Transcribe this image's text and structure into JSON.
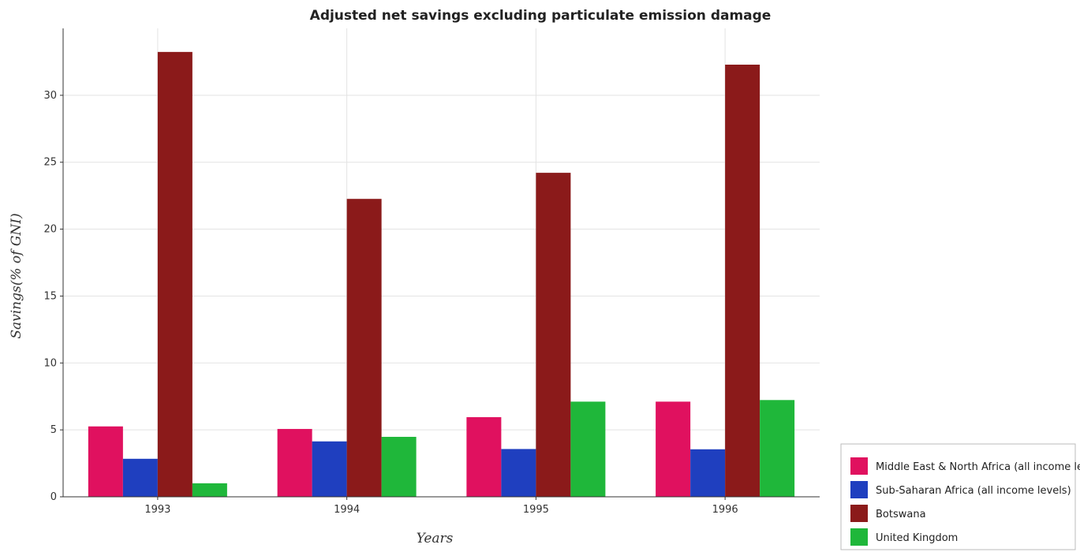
{
  "chart_data": {
    "type": "bar",
    "title": "Adjusted net savings excluding particulate emission damage",
    "xlabel": "Years",
    "ylabel": "Savings(% of GNI)",
    "categories": [
      "1993",
      "1994",
      "1995",
      "1996"
    ],
    "ylim": [
      0,
      35
    ],
    "yticks": [
      0,
      5,
      10,
      15,
      20,
      25,
      30
    ],
    "grid": true,
    "legend_position": "bottom-right",
    "series": [
      {
        "name": "Middle East & North Africa (all income levels)",
        "color": "#e0115f",
        "values": [
          5.26,
          5.07,
          5.95,
          7.11
        ]
      },
      {
        "name": "Sub-Saharan Africa (all income levels)",
        "color": "#1f3fbf",
        "values": [
          2.84,
          4.14,
          3.57,
          3.55
        ]
      },
      {
        "name": "Botswana",
        "color": "#8b1a1a",
        "values": [
          33.24,
          22.26,
          24.21,
          32.29
        ]
      },
      {
        "name": "United Kingdom",
        "color": "#1fb73a",
        "values": [
          1.01,
          4.48,
          7.11,
          7.23
        ]
      }
    ]
  }
}
